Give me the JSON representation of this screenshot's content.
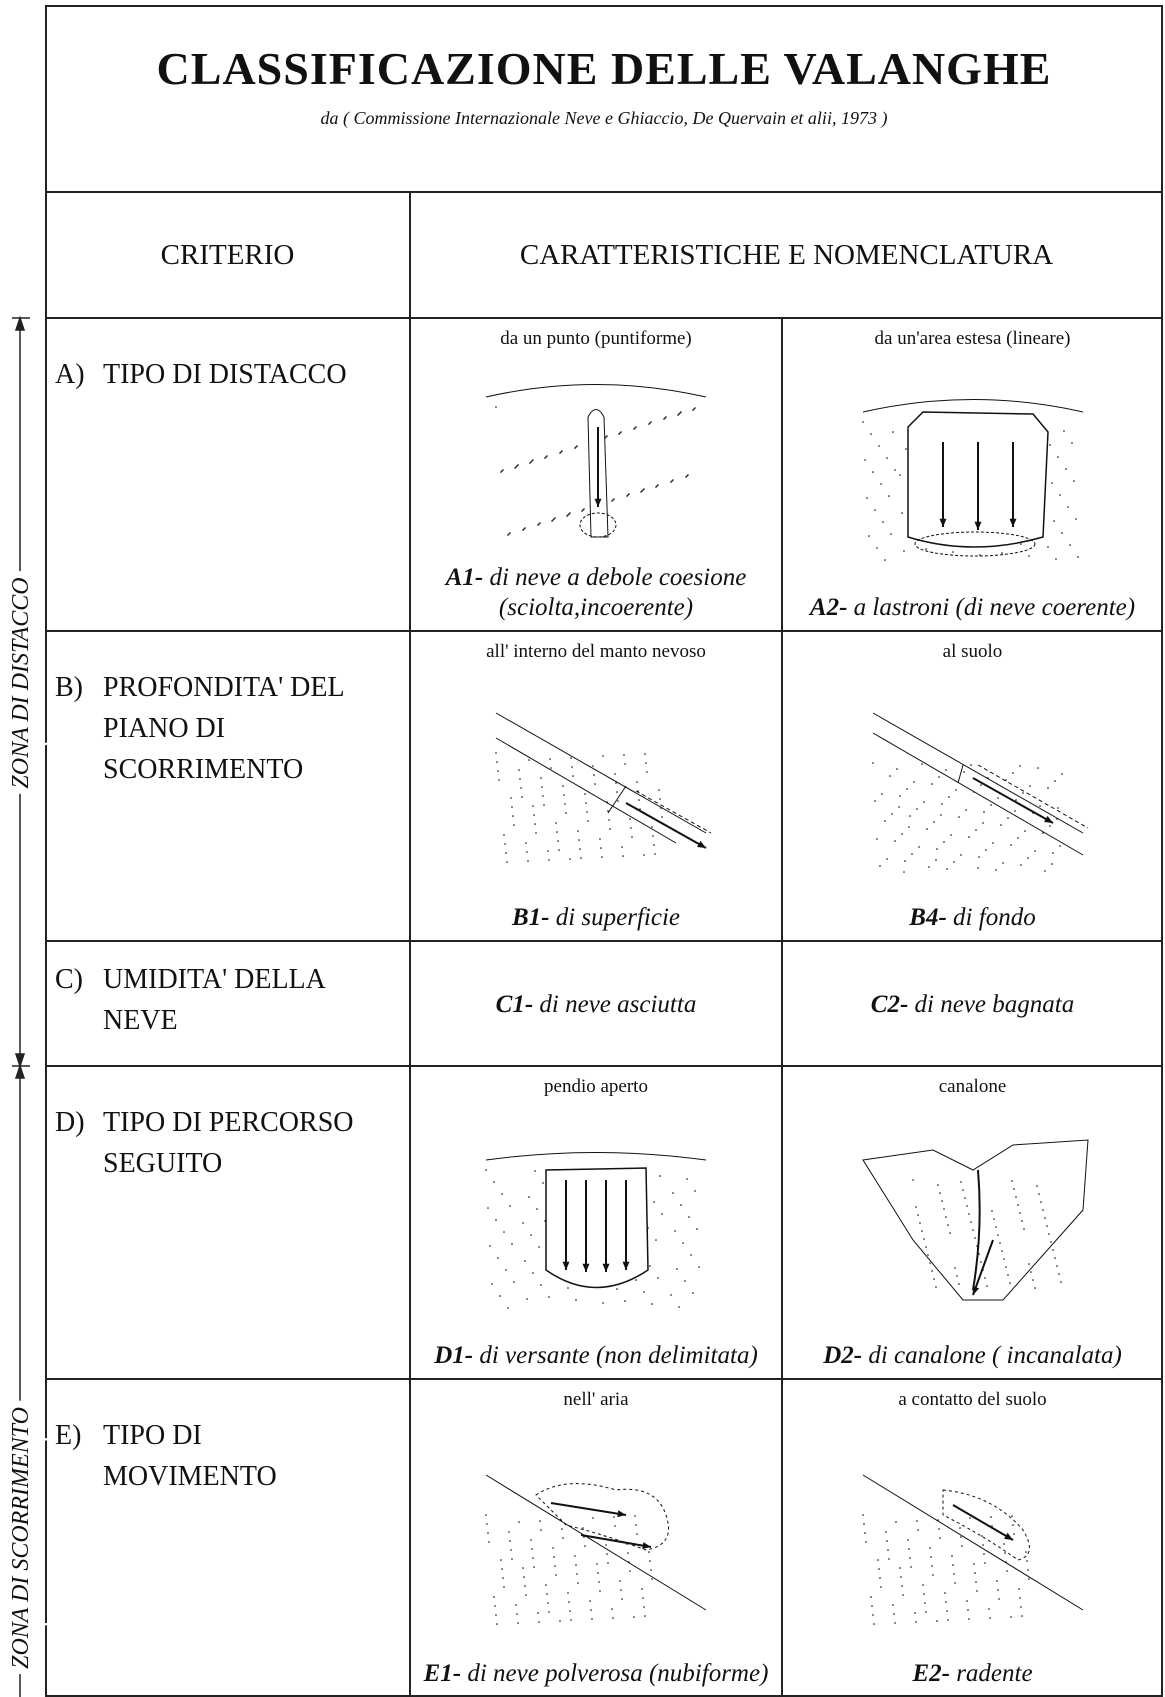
{
  "header": {
    "title": "CLASSIFICAZIONE DELLE VALANGHE",
    "subtitle": "da ( Commissione Internazionale Neve e Ghiaccio, De Quervain et alii, 1973 )"
  },
  "columns": [
    "CRITERIO",
    "CARATTERISTICHE E NOMENCLATURA"
  ],
  "zones": [
    "ZONA DI DISTACCO",
    "ZONA DI SCORRIMENTO"
  ],
  "rows": [
    {
      "letter": "A)",
      "lines": [
        "TIPO DI DISTACCO"
      ],
      "options": [
        {
          "caption": "da un punto (puntiforme)",
          "code": "A1-",
          "name": "di neve a debole coesione (sciolta,incoerente)"
        },
        {
          "caption": "da un'area estesa (lineare)",
          "code": "A2-",
          "name": "a lastroni (di neve coerente)"
        }
      ]
    },
    {
      "letter": "B)",
      "lines": [
        "PROFONDITA' DEL",
        "PIANO DI",
        "SCORRIMENTO"
      ],
      "options": [
        {
          "caption": "all' interno del manto nevoso",
          "code": "B1-",
          "name": "di superficie"
        },
        {
          "caption": "al suolo",
          "code": "B4-",
          "name": "di fondo"
        }
      ]
    },
    {
      "letter": "C)",
      "lines": [
        "UMIDITA' DELLA",
        "NEVE"
      ],
      "options": [
        {
          "code": "C1-",
          "name": "di neve  asciutta"
        },
        {
          "code": "C2-",
          "name": "di neve  bagnata"
        }
      ]
    },
    {
      "letter": "D)",
      "lines": [
        "TIPO DI PERCORSO",
        "SEGUITO"
      ],
      "options": [
        {
          "caption": "pendio aperto",
          "code": "D1-",
          "name": "di versante (non delimitata)"
        },
        {
          "caption": "canalone",
          "code": "D2-",
          "name": "di canalone ( incanalata)"
        }
      ]
    },
    {
      "letter": "E)",
      "lines": [
        "TIPO DI",
        "MOVIMENTO"
      ],
      "options": [
        {
          "caption": "nell' aria",
          "code": "E1-",
          "name": "di neve polverosa (nubiforme)"
        },
        {
          "caption": "a contatto del suolo",
          "code": "E2-",
          "name": "radente"
        }
      ]
    }
  ]
}
